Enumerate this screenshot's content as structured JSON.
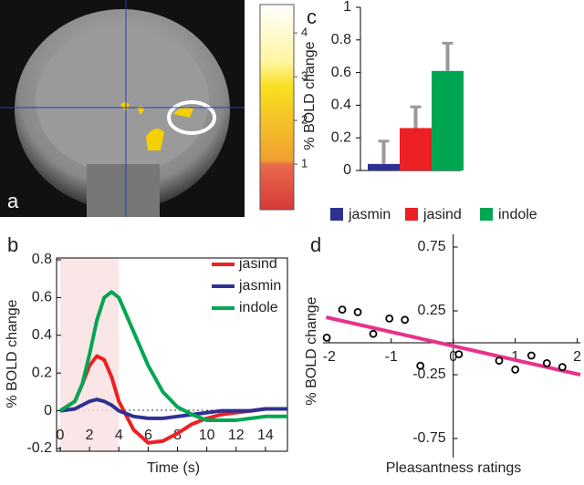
{
  "chart_data": [
    {
      "type": "colorbar",
      "panel": "a",
      "ylim": [
        0,
        4.65
      ],
      "yticks": [
        1,
        2,
        3,
        4
      ]
    },
    {
      "type": "bar",
      "panel": "c",
      "y_label": "% BOLD change",
      "categories": [
        "jasmin",
        "jasind",
        "indole"
      ],
      "colors": [
        "#2e3192",
        "#ed2024",
        "#00a651"
      ],
      "values": [
        0.04,
        0.26,
        0.61
      ],
      "errors": [
        0.14,
        0.13,
        0.17
      ],
      "ylim": [
        0,
        1
      ],
      "yticks": [
        0,
        0.2,
        0.4,
        0.6,
        0.8,
        1
      ]
    },
    {
      "type": "line",
      "panel": "b",
      "x_label": "Time (s)",
      "y_label": "% BOLD change",
      "x": [
        0,
        1,
        1.5,
        2,
        2.5,
        3,
        3.5,
        4,
        5,
        6,
        7,
        8,
        9,
        10,
        11,
        12,
        13,
        14,
        15.5
      ],
      "shade": [
        0,
        4
      ],
      "series": [
        {
          "name": "jasind",
          "color": "#ed2024",
          "values": [
            0,
            0.05,
            0.14,
            0.24,
            0.29,
            0.27,
            0.18,
            0.05,
            -0.1,
            -0.17,
            -0.16,
            -0.12,
            -0.07,
            -0.04,
            -0.02,
            -0.01,
            0,
            0.01,
            0.01
          ]
        },
        {
          "name": "jasmin",
          "color": "#2e3192",
          "values": [
            0,
            0.01,
            0.03,
            0.05,
            0.06,
            0.05,
            0.03,
            0,
            -0.03,
            -0.04,
            -0.04,
            -0.03,
            -0.02,
            -0.01,
            0,
            0,
            0,
            0.01,
            0.01
          ]
        },
        {
          "name": "indole",
          "color": "#00a651",
          "values": [
            0,
            0.05,
            0.14,
            0.3,
            0.48,
            0.6,
            0.63,
            0.6,
            0.42,
            0.24,
            0.1,
            0.02,
            -0.02,
            -0.05,
            -0.05,
            -0.05,
            -0.04,
            -0.03,
            -0.03
          ]
        }
      ],
      "xlim": [
        -0.2,
        15.5
      ],
      "xticks": [
        0,
        2,
        4,
        6,
        8,
        10,
        12,
        14
      ],
      "ylim": [
        -0.2,
        0.8
      ],
      "yticks": [
        -0.2,
        0,
        0.2,
        0.4,
        0.6,
        0.8
      ]
    },
    {
      "type": "scatter",
      "panel": "d",
      "x_label": "Pleasantness ratings",
      "y_label": "% BOLD change",
      "x": [
        -2.04,
        -1.79,
        -1.54,
        -1.29,
        -1.03,
        -0.78,
        -0.53,
        0.09,
        0.74,
        1.0,
        1.26,
        1.51,
        1.76
      ],
      "values": [
        0.04,
        0.26,
        0.24,
        0.07,
        0.19,
        0.18,
        -0.18,
        -0.09,
        -0.14,
        -0.21,
        -0.1,
        -0.16,
        -0.19
      ],
      "fit": {
        "x": [
          -2.05,
          2.05
        ],
        "y": [
          0.2,
          -0.25
        ]
      },
      "fit_color": "#e8318a",
      "xlim": [
        -2.1,
        2.05
      ],
      "xticks": [
        -2,
        -1,
        0,
        1,
        2
      ],
      "ylim": [
        -0.9,
        0.85
      ],
      "yticks": [
        -0.75,
        -0.25,
        0.25,
        0.75
      ]
    }
  ]
}
